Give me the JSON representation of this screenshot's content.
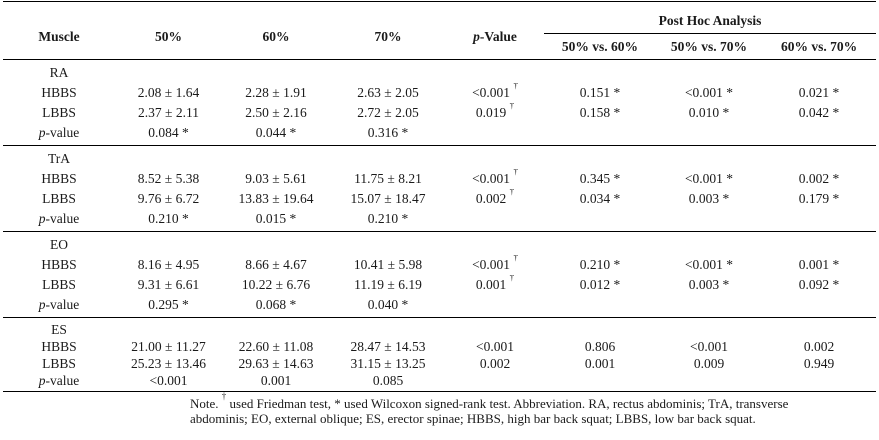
{
  "page": {
    "background": "#ffffff",
    "text_color": "#1a1a1a",
    "rule_color": "#000000"
  },
  "table": {
    "header": {
      "muscle": "Muscle",
      "loads": [
        "50%",
        "60%",
        "70%"
      ],
      "p_value": {
        "italic": "p",
        "rest": "-Value"
      },
      "post_hoc_title": "Post Hoc Analysis",
      "post_hoc_cols": [
        "50% vs. 60%",
        "50% vs. 70%",
        "60% vs. 70%"
      ]
    },
    "sections": [
      {
        "muscle": "RA",
        "rows": [
          {
            "label": "HBBS",
            "loads": [
              "2.08 ± 1.64",
              "2.28 ± 1.91",
              "2.63 ± 2.05"
            ],
            "p": {
              "v": "<0.001",
              "m": "†"
            },
            "post_hoc": [
              "0.151 *",
              "<0.001 *",
              "0.021 *"
            ]
          },
          {
            "label": "LBBS",
            "loads": [
              "2.37 ± 2.11",
              "2.50 ± 2.16",
              "2.72 ± 2.05"
            ],
            "p": {
              "v": "0.019",
              "m": "†"
            },
            "post_hoc": [
              "0.158 *",
              "0.010 *",
              "0.042 *"
            ]
          },
          {
            "label": "p-value",
            "italic_p": true,
            "loads": [
              "0.084 *",
              "0.044 *",
              "0.316 *"
            ],
            "p": {
              "v": ""
            },
            "post_hoc": [
              "",
              "",
              ""
            ]
          }
        ]
      },
      {
        "muscle": "TrA",
        "rows": [
          {
            "label": "HBBS",
            "loads": [
              "8.52 ± 5.38",
              "9.03 ± 5.61",
              "11.75 ± 8.21"
            ],
            "p": {
              "v": "<0.001",
              "m": "†"
            },
            "post_hoc": [
              "0.345 *",
              "<0.001 *",
              "0.002 *"
            ]
          },
          {
            "label": "LBBS",
            "loads": [
              "9.76 ± 6.72",
              "13.83 ± 19.64",
              "15.07 ± 18.47"
            ],
            "p": {
              "v": "0.002",
              "m": "†"
            },
            "post_hoc": [
              "0.034 *",
              "0.003 *",
              "0.179 *"
            ]
          },
          {
            "label": "p-value",
            "italic_p": true,
            "loads": [
              "0.210 *",
              "0.015 *",
              "0.210 *"
            ],
            "p": {
              "v": ""
            },
            "post_hoc": [
              "",
              "",
              ""
            ]
          }
        ]
      },
      {
        "muscle": "EO",
        "rows": [
          {
            "label": "HBBS",
            "loads": [
              "8.16 ± 4.95",
              "8.66 ± 4.67",
              "10.41 ± 5.98"
            ],
            "p": {
              "v": "<0.001",
              "m": "†"
            },
            "post_hoc": [
              "0.210 *",
              "<0.001 *",
              "0.001 *"
            ]
          },
          {
            "label": "LBBS",
            "loads": [
              "9.31 ± 6.61",
              "10.22 ± 6.76",
              "11.19 ± 6.19"
            ],
            "p": {
              "v": "0.001",
              "m": "†"
            },
            "post_hoc": [
              "0.012 *",
              "0.003 *",
              "0.092 *"
            ]
          },
          {
            "label": "p-value",
            "italic_p": true,
            "loads": [
              "0.295 *",
              "0.068 *",
              "0.040 *"
            ],
            "p": {
              "v": ""
            },
            "post_hoc": [
              "",
              "",
              ""
            ]
          }
        ]
      },
      {
        "muscle": "ES",
        "rows": [
          {
            "label": "HBBS",
            "loads": [
              "21.00 ± 11.27",
              "22.60 ± 11.08",
              "28.47 ± 14.53"
            ],
            "p": {
              "v": "<0.001"
            },
            "post_hoc": [
              "0.806",
              "<0.001",
              "0.002"
            ]
          },
          {
            "label": "LBBS",
            "loads": [
              "25.23 ± 13.46",
              "29.63 ± 14.63",
              "31.15 ± 13.25"
            ],
            "p": {
              "v": "0.002"
            },
            "post_hoc": [
              "0.001",
              "0.009",
              "0.949"
            ]
          },
          {
            "label": "p-value",
            "italic_p": true,
            "loads": [
              "<0.001",
              "0.001",
              "0.085"
            ],
            "p": {
              "v": ""
            },
            "post_hoc": [
              "",
              "",
              ""
            ]
          }
        ]
      }
    ]
  },
  "footnote": {
    "line1": [
      {
        "t": "Note. "
      },
      {
        "t": "†",
        "sup": true
      },
      {
        "t": " used Friedman test, * used Wilcoxon signed-rank test. Abbreviation. RA, rectus abdominis; TrA, transverse"
      }
    ],
    "line2": "abdominis; EO, external oblique; ES, erector spinae; HBBS, high bar back squat; LBBS, low bar back squat."
  }
}
